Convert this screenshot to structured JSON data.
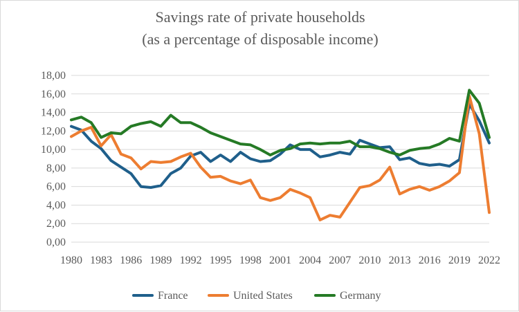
{
  "chart_data": {
    "type": "line",
    "title": "Savings rate of private households",
    "subtitle": "(as a percentage of disposable income)",
    "xlabel": "",
    "ylabel": "",
    "ylim": [
      0,
      18
    ],
    "y_ticks": [
      "0,00",
      "2,00",
      "4,00",
      "6,00",
      "8,00",
      "10,00",
      "12,00",
      "14,00",
      "16,00",
      "18,00"
    ],
    "y_tick_values": [
      0,
      2,
      4,
      6,
      8,
      10,
      12,
      14,
      16,
      18
    ],
    "x": [
      1980,
      1981,
      1982,
      1983,
      1984,
      1985,
      1986,
      1987,
      1988,
      1989,
      1990,
      1991,
      1992,
      1993,
      1994,
      1995,
      1996,
      1997,
      1998,
      1999,
      2000,
      2001,
      2002,
      2003,
      2004,
      2005,
      2006,
      2007,
      2008,
      2009,
      2010,
      2011,
      2012,
      2013,
      2014,
      2015,
      2016,
      2017,
      2018,
      2019,
      2020,
      2021,
      2022
    ],
    "x_tick_labels": [
      "1980",
      "1983",
      "1986",
      "1989",
      "1992",
      "1995",
      "1998",
      "2001",
      "2004",
      "2007",
      "2010",
      "2013",
      "2016",
      "2019",
      "2022"
    ],
    "grid": true,
    "legend_position": "bottom",
    "series": [
      {
        "name": "France",
        "color": "#1f5f8b",
        "values": [
          12.5,
          12.1,
          10.9,
          10.1,
          8.8,
          8.1,
          7.4,
          6.0,
          5.9,
          6.1,
          7.4,
          8.0,
          9.3,
          9.7,
          8.7,
          9.4,
          8.7,
          9.7,
          9.0,
          8.7,
          8.8,
          9.5,
          10.5,
          10.0,
          10.0,
          9.2,
          9.4,
          9.7,
          9.5,
          11.0,
          10.6,
          10.2,
          10.3,
          8.9,
          9.1,
          8.5,
          8.3,
          8.4,
          8.2,
          8.9,
          14.9,
          13.1,
          10.7
        ]
      },
      {
        "name": "United States",
        "color": "#ed7d31",
        "values": [
          11.4,
          12.0,
          12.4,
          10.4,
          11.6,
          9.5,
          9.1,
          7.9,
          8.7,
          8.6,
          8.7,
          9.2,
          9.6,
          8.1,
          7.0,
          7.1,
          6.6,
          6.3,
          6.7,
          4.8,
          4.5,
          4.8,
          5.7,
          5.3,
          4.8,
          2.4,
          2.9,
          2.7,
          4.3,
          5.9,
          6.1,
          6.7,
          8.1,
          5.2,
          5.7,
          6.0,
          5.6,
          6.0,
          6.6,
          7.5,
          15.8,
          11.7,
          3.2
        ]
      },
      {
        "name": "Germany",
        "color": "#257a25",
        "values": [
          13.2,
          13.5,
          12.9,
          11.3,
          11.8,
          11.7,
          12.5,
          12.8,
          13.0,
          12.5,
          13.7,
          12.9,
          12.9,
          12.4,
          11.8,
          11.4,
          11.0,
          10.6,
          10.5,
          10.0,
          9.4,
          9.9,
          10.1,
          10.6,
          10.7,
          10.6,
          10.7,
          10.7,
          10.9,
          10.3,
          10.3,
          10.1,
          9.7,
          9.4,
          9.9,
          10.1,
          10.2,
          10.6,
          11.2,
          10.9,
          16.4,
          15.0,
          11.3
        ]
      }
    ]
  }
}
